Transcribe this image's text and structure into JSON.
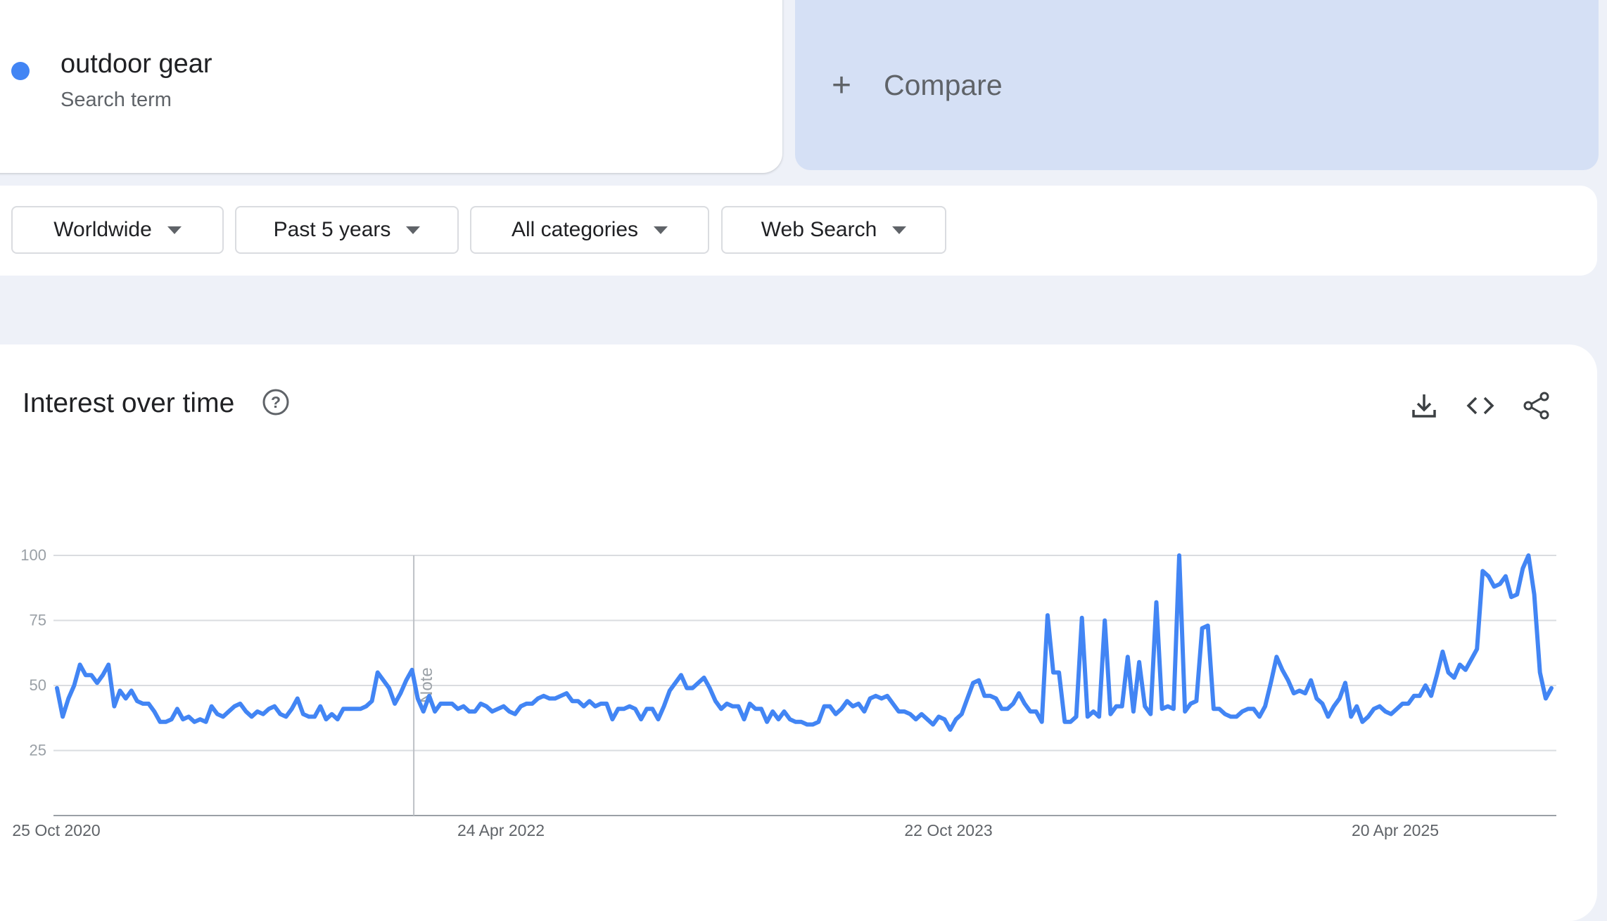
{
  "search_term": {
    "name": "outdoor gear",
    "subtitle": "Search term",
    "color": "#4285f4"
  },
  "compare": {
    "label": "Compare",
    "icon": "plus-icon",
    "background": "#d5e0f5"
  },
  "filters": [
    {
      "label": "Worldwide",
      "icon": "dropdown-arrow-icon"
    },
    {
      "label": "Past 5 years",
      "icon": "dropdown-arrow-icon"
    },
    {
      "label": "All categories",
      "icon": "dropdown-arrow-icon"
    },
    {
      "label": "Web Search",
      "icon": "dropdown-arrow-icon"
    }
  ],
  "panel": {
    "title": "Interest over time",
    "icons": [
      "help-icon",
      "download-icon",
      "embed-code-icon",
      "share-icon"
    ]
  },
  "chart_data": {
    "type": "line",
    "title": "",
    "ylim": [
      0,
      100
    ],
    "yticks": [
      "100",
      "75",
      "50",
      "25"
    ],
    "xtick_labels": [
      "25 Oct 2020",
      "24 Apr 2022",
      "22 Oct 2023",
      "20 Apr 2025"
    ],
    "note_label": "Note",
    "line_color": "#4285f4",
    "grid": true,
    "series": [
      {
        "name": "outdoor gear",
        "values": [
          49,
          38,
          45,
          50,
          58,
          54,
          54,
          51,
          54,
          58,
          42,
          48,
          45,
          48,
          44,
          43,
          43,
          40,
          36,
          36,
          37,
          41,
          37,
          38,
          36,
          37,
          36,
          42,
          39,
          38,
          40,
          42,
          43,
          40,
          38,
          40,
          39,
          41,
          42,
          39,
          38,
          41,
          45,
          39,
          38,
          38,
          42,
          37,
          39,
          37,
          41,
          41,
          41,
          41,
          42,
          44,
          55,
          52,
          49,
          43,
          47,
          52,
          56,
          45,
          40,
          46,
          40,
          43,
          43,
          43,
          41,
          42,
          40,
          40,
          43,
          42,
          40,
          41,
          42,
          40,
          39,
          42,
          43,
          43,
          45,
          46,
          45,
          45,
          46,
          47,
          44,
          44,
          42,
          44,
          42,
          43,
          43,
          37,
          41,
          41,
          42,
          41,
          37,
          41,
          41,
          37,
          42,
          48,
          51,
          54,
          49,
          49,
          51,
          53,
          49,
          44,
          41,
          43,
          42,
          42,
          37,
          43,
          41,
          41,
          36,
          40,
          37,
          40,
          37,
          36,
          36,
          35,
          35,
          36,
          42,
          42,
          39,
          41,
          44,
          42,
          43,
          40,
          45,
          46,
          45,
          46,
          43,
          40,
          40,
          39,
          37,
          39,
          37,
          35,
          38,
          37,
          33,
          37,
          39,
          45,
          51,
          52,
          46,
          46,
          45,
          41,
          41,
          43,
          47,
          43,
          40,
          40,
          36,
          77,
          55,
          55,
          36,
          36,
          38,
          76,
          38,
          40,
          38,
          75,
          39,
          42,
          42,
          61,
          40,
          59,
          42,
          39,
          82,
          41,
          42,
          41,
          100,
          40,
          43,
          44,
          72,
          73,
          41,
          41,
          39,
          38,
          38,
          40,
          41,
          41,
          38,
          42,
          51,
          61,
          56,
          52,
          47,
          48,
          47,
          52,
          45,
          43,
          38,
          42,
          45,
          51,
          38,
          42,
          36,
          38,
          41,
          42,
          40,
          39,
          41,
          43,
          43,
          46,
          46,
          50,
          46,
          54,
          63,
          55,
          53,
          58,
          56,
          60,
          64,
          94,
          92,
          88,
          89,
          92,
          84,
          85,
          95,
          100,
          85,
          55,
          45,
          49
        ]
      }
    ]
  }
}
